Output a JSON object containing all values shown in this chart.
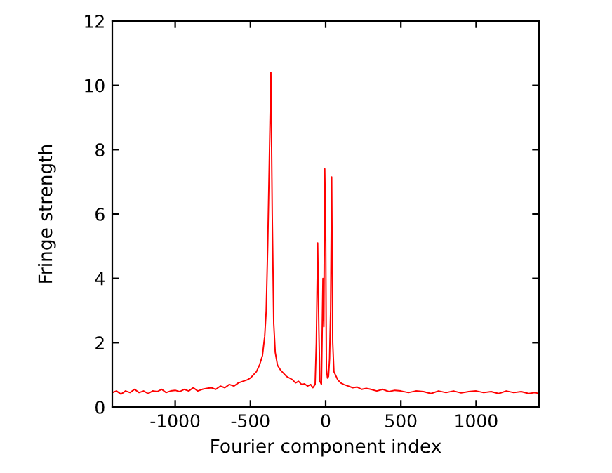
{
  "chart_data": {
    "type": "line",
    "xlabel": "Fourier component index",
    "ylabel": "Fringe strength",
    "xlim": [
      -1418,
      1418
    ],
    "ylim": [
      0,
      12
    ],
    "xticks": [
      -1000,
      -500,
      0,
      500,
      1000
    ],
    "yticks": [
      0,
      2,
      4,
      6,
      8,
      10,
      12
    ],
    "grid": false,
    "marker": "none",
    "line_style": "solid",
    "series": [
      {
        "color": "#ff0000",
        "x": [
          -1418,
          -1390,
          -1360,
          -1330,
          -1300,
          -1270,
          -1240,
          -1210,
          -1180,
          -1150,
          -1120,
          -1090,
          -1060,
          -1030,
          -1000,
          -970,
          -940,
          -910,
          -880,
          -850,
          -820,
          -790,
          -760,
          -730,
          -700,
          -670,
          -640,
          -610,
          -580,
          -550,
          -520,
          -500,
          -480,
          -460,
          -440,
          -420,
          -405,
          -395,
          -385,
          -375,
          -364,
          -355,
          -345,
          -335,
          -320,
          -300,
          -280,
          -260,
          -240,
          -220,
          -200,
          -180,
          -160,
          -140,
          -120,
          -100,
          -85,
          -70,
          -62,
          -53,
          -45,
          -38,
          -28,
          -18,
          -12,
          -6,
          0,
          5,
          12,
          19,
          26,
          33,
          40,
          47,
          55,
          65,
          80,
          100,
          120,
          150,
          180,
          210,
          240,
          270,
          300,
          340,
          380,
          420,
          460,
          500,
          550,
          600,
          650,
          700,
          750,
          800,
          850,
          900,
          950,
          1000,
          1050,
          1100,
          1150,
          1200,
          1250,
          1300,
          1350,
          1390,
          1418
        ],
        "values": [
          0.45,
          0.5,
          0.4,
          0.5,
          0.45,
          0.55,
          0.45,
          0.5,
          0.42,
          0.5,
          0.48,
          0.55,
          0.45,
          0.5,
          0.52,
          0.48,
          0.55,
          0.5,
          0.6,
          0.5,
          0.55,
          0.58,
          0.6,
          0.55,
          0.65,
          0.6,
          0.7,
          0.65,
          0.75,
          0.8,
          0.85,
          0.9,
          1.0,
          1.1,
          1.3,
          1.6,
          2.2,
          3.0,
          5.0,
          7.5,
          10.4,
          6.0,
          2.6,
          1.7,
          1.3,
          1.15,
          1.05,
          0.95,
          0.9,
          0.85,
          0.75,
          0.8,
          0.7,
          0.72,
          0.65,
          0.7,
          0.6,
          0.7,
          2.0,
          5.1,
          2.4,
          0.8,
          0.7,
          4.0,
          2.5,
          7.4,
          5.5,
          1.2,
          0.9,
          0.95,
          1.5,
          3.0,
          7.15,
          2.0,
          1.1,
          1.0,
          0.85,
          0.75,
          0.7,
          0.65,
          0.6,
          0.62,
          0.55,
          0.58,
          0.55,
          0.5,
          0.55,
          0.48,
          0.52,
          0.5,
          0.45,
          0.5,
          0.48,
          0.42,
          0.5,
          0.45,
          0.5,
          0.44,
          0.48,
          0.5,
          0.45,
          0.48,
          0.42,
          0.5,
          0.45,
          0.48,
          0.42,
          0.45,
          0.42
        ]
      }
    ]
  }
}
